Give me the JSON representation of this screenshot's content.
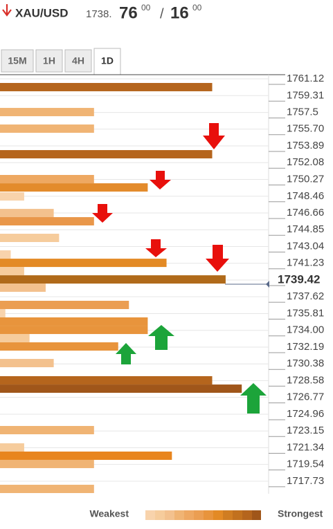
{
  "header": {
    "symbol": "XAU/USD",
    "price_prefix": "1738.",
    "price_main": "76",
    "price_sup": "00",
    "separator": "/",
    "ask_main": "16",
    "ask_sup": "00"
  },
  "tabs": [
    "15M",
    "1H",
    "4H",
    "1D"
  ],
  "legend": {
    "weakest": "Weakest",
    "strongest": "Strongest"
  },
  "chart_data": {
    "type": "confluence",
    "ylim": [
      1716.38,
      1761.57
    ],
    "xlim": [
      0,
      100
    ],
    "yticks": [
      1761.12,
      1759.31,
      1757.5,
      {
        "value": 1755.7,
        "label": "1755.70"
      },
      1753.89,
      1752.08,
      1750.27,
      1748.46,
      1746.66,
      1744.85,
      1743.04,
      1741.23,
      1739.42,
      1737.62,
      1735.81,
      {
        "value": 1734.0,
        "label": "1734.00"
      },
      1732.19,
      1730.38,
      1728.58,
      1726.77,
      1724.96,
      1723.15,
      1721.34,
      1719.54,
      1717.73
    ],
    "current_price": 1739.42,
    "grid": true,
    "bars": [
      {
        "price": 1760.23,
        "strength": 79,
        "color": "#b5651d"
      },
      {
        "price": 1757.54,
        "strength": 35,
        "color": "#f0b474"
      },
      {
        "price": 1755.75,
        "strength": 35,
        "color": "#f0b474"
      },
      {
        "price": 1752.99,
        "strength": 79,
        "color": "#b5651d"
      },
      {
        "price": 1750.31,
        "strength": 35,
        "color": "#eea862"
      },
      {
        "price": 1749.41,
        "strength": 55,
        "color": "#e38b2c"
      },
      {
        "price": 1748.44,
        "strength": 9,
        "color": "#f8d3ac"
      },
      {
        "price": 1746.65,
        "strength": 20,
        "color": "#f3c18e"
      },
      {
        "price": 1745.76,
        "strength": 35,
        "color": "#e9974a"
      },
      {
        "price": 1743.97,
        "strength": 22,
        "color": "#f6cc9c"
      },
      {
        "price": 1742.18,
        "strength": 4,
        "color": "#f8d3ac"
      },
      {
        "price": 1741.28,
        "strength": 62,
        "color": "#e38a25"
      },
      {
        "price": 1740.39,
        "strength": 9,
        "color": "#f6cc9c"
      },
      {
        "price": 1739.49,
        "strength": 84,
        "color": "#b06a1a"
      },
      {
        "price": 1738.6,
        "strength": 17,
        "color": "#f3c18e"
      },
      {
        "price": 1736.74,
        "strength": 48,
        "color": "#eb9e52"
      },
      {
        "price": 1735.84,
        "strength": 2,
        "color": "#f8d3ac"
      },
      {
        "price": 1734.95,
        "strength": 55,
        "color": "#e8943c"
      },
      {
        "price": 1734.05,
        "strength": 55,
        "color": "#e8943c"
      },
      {
        "price": 1733.16,
        "strength": 11,
        "color": "#f6cc9c"
      },
      {
        "price": 1732.26,
        "strength": 44,
        "color": "#e8943c"
      },
      {
        "price": 1730.47,
        "strength": 20,
        "color": "#f3c18e"
      },
      {
        "price": 1728.61,
        "strength": 79,
        "color": "#b5651d"
      },
      {
        "price": 1727.71,
        "strength": 90,
        "color": "#a0561a"
      },
      {
        "price": 1723.24,
        "strength": 35,
        "color": "#f0b474"
      },
      {
        "price": 1721.37,
        "strength": 9,
        "color": "#f6cc9c"
      },
      {
        "price": 1720.48,
        "strength": 64,
        "color": "#e8851e"
      },
      {
        "price": 1719.59,
        "strength": 35,
        "color": "#f0b474"
      },
      {
        "price": 1716.9,
        "strength": 35,
        "color": "#f0b474"
      }
    ]
  }
}
